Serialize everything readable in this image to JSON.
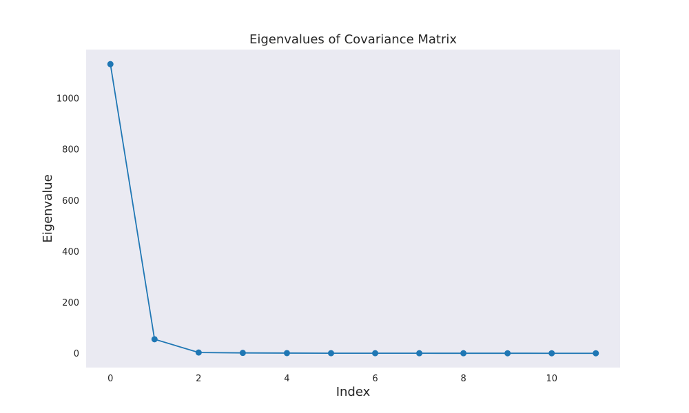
{
  "chart_data": {
    "type": "line",
    "title": "Eigenvalues of Covariance Matrix",
    "xlabel": "Index",
    "ylabel": "Eigenvalue",
    "x": [
      0,
      1,
      2,
      3,
      4,
      5,
      6,
      7,
      8,
      9,
      10,
      11
    ],
    "series": [
      {
        "values": [
          1133,
          55,
          3,
          1.5,
          0.8,
          0.4,
          0.3,
          0.2,
          0.15,
          0.1,
          0.05,
          0.02
        ]
      }
    ],
    "xlim": [
      -0.55,
      11.55
    ],
    "ylim": [
      -56,
      1190
    ],
    "xticks": [
      0,
      2,
      4,
      6,
      8,
      10
    ],
    "yticks": [
      0,
      200,
      400,
      600,
      800,
      1000
    ],
    "grid": false,
    "marker": "circle",
    "colors": {
      "line": "#1f77b4",
      "plot_background": "#eaeaf2",
      "figure_background": "#ffffff"
    }
  }
}
